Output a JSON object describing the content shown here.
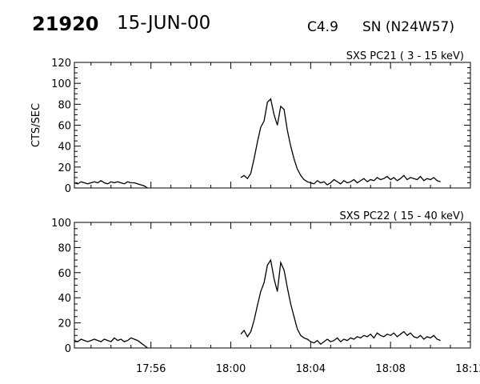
{
  "header": {
    "event_number": "21920",
    "date": "15-JUN-00",
    "flare_class": "C4.9",
    "region": "SN (N24W57)"
  },
  "chart_data": [
    {
      "type": "line",
      "title": "SXS PC21  (  3 - 15 keV)",
      "ylabel": "CTS/SEC",
      "xlabel": "",
      "ylim": [
        0,
        120
      ],
      "yticks": [
        "0",
        "20",
        "40",
        "60",
        "80",
        "100",
        "120"
      ],
      "xlim": [
        "17:52:10",
        "18:12:00"
      ],
      "xticks": [],
      "grid": false,
      "series": [
        {
          "x_start": "17:52:10",
          "x_step_seconds": 10,
          "values": [
            5,
            4,
            6,
            5,
            4,
            5,
            6,
            5,
            7,
            5,
            4,
            6,
            5,
            6,
            5,
            4,
            6,
            5,
            5,
            4,
            3,
            2,
            0,
            null,
            null,
            null,
            null,
            null,
            null,
            null,
            null,
            null,
            null,
            null,
            null,
            null,
            null,
            null,
            null,
            null,
            null,
            null,
            null,
            null,
            null,
            null,
            null,
            null,
            null,
            null,
            10,
            12,
            9,
            14,
            28,
            44,
            58,
            64,
            82,
            85,
            70,
            60,
            78,
            75,
            55,
            40,
            28,
            18,
            12,
            8,
            6,
            5,
            4,
            7,
            5,
            6,
            3,
            5,
            8,
            6,
            4,
            7,
            5,
            6,
            8,
            5,
            7,
            9,
            6,
            8,
            7,
            10,
            8,
            9,
            11,
            8,
            10,
            7,
            9,
            12,
            8,
            10,
            9,
            8,
            11,
            7,
            9,
            8,
            10,
            7,
            6
          ]
        }
      ]
    },
    {
      "type": "line",
      "title": "SXS PC22  ( 15 - 40 keV)",
      "ylabel": "",
      "xlabel": "",
      "ylim": [
        0,
        100
      ],
      "yticks": [
        "0",
        "20",
        "40",
        "60",
        "80",
        "100"
      ],
      "xlim": [
        "17:52:10",
        "18:12:00"
      ],
      "xticks": [
        "17:56",
        "18:00",
        "18:04",
        "18:08",
        "18:12"
      ],
      "grid": false,
      "series": [
        {
          "x_start": "17:52:10",
          "x_step_seconds": 10,
          "values": [
            6,
            5,
            7,
            6,
            5,
            6,
            7,
            6,
            5,
            7,
            6,
            5,
            8,
            6,
            7,
            5,
            6,
            8,
            7,
            6,
            4,
            2,
            0,
            null,
            null,
            null,
            null,
            null,
            null,
            null,
            null,
            null,
            null,
            null,
            null,
            null,
            null,
            null,
            null,
            null,
            null,
            null,
            null,
            null,
            null,
            null,
            null,
            null,
            null,
            null,
            11,
            14,
            9,
            13,
            22,
            34,
            45,
            52,
            66,
            70,
            55,
            45,
            68,
            62,
            48,
            35,
            25,
            15,
            10,
            8,
            7,
            5,
            4,
            6,
            3,
            5,
            7,
            5,
            6,
            8,
            5,
            7,
            6,
            8,
            7,
            9,
            8,
            10,
            9,
            11,
            8,
            12,
            10,
            9,
            11,
            10,
            12,
            9,
            11,
            13,
            10,
            12,
            9,
            8,
            10,
            7,
            9,
            8,
            10,
            7,
            6
          ]
        }
      ]
    }
  ]
}
